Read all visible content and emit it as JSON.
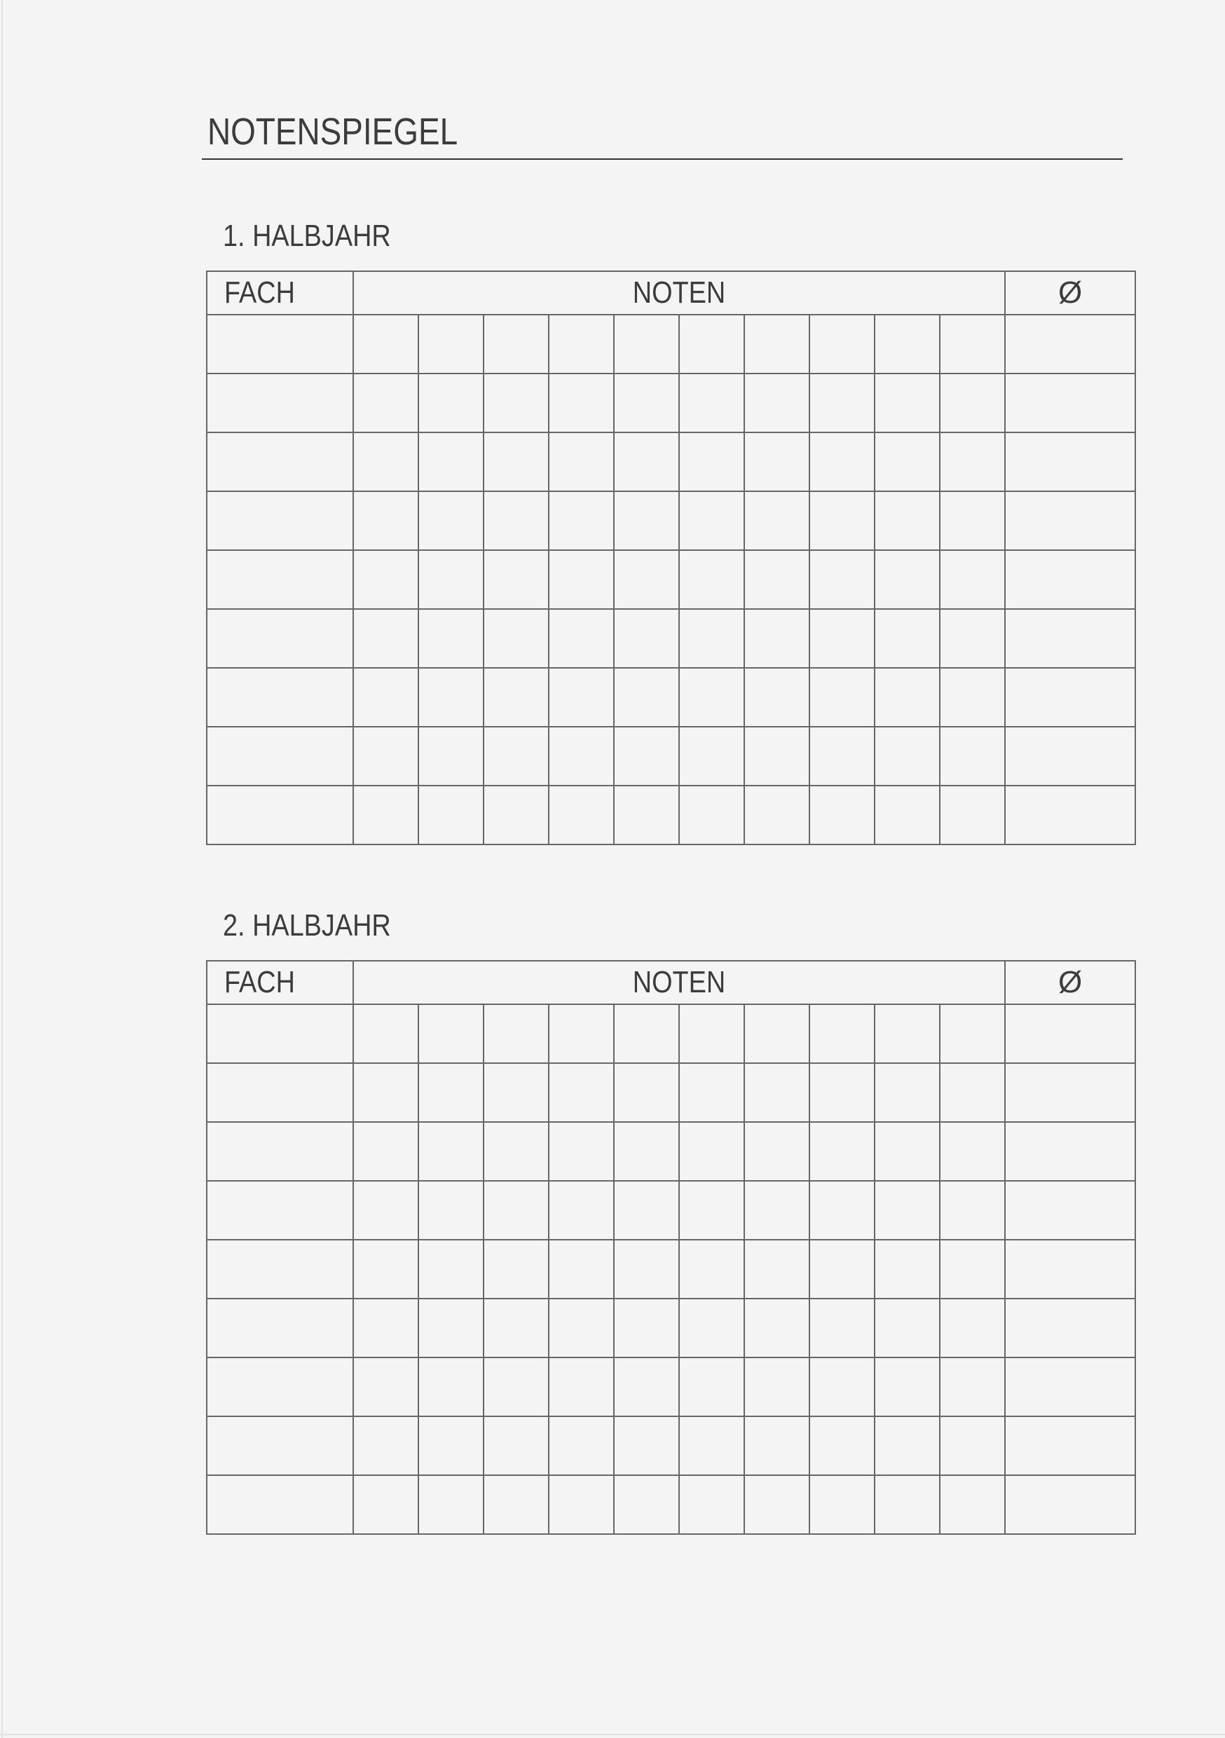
{
  "document": {
    "title": "NOTENSPIEGEL",
    "colors": {
      "background": "#f4f4f4",
      "text": "#3c3c3c",
      "grid": "#666666"
    },
    "sections": [
      {
        "heading": "1. HALBJAHR",
        "columns": {
          "subject": "FACH",
          "grades": "NOTEN",
          "average": "Ø"
        }
      },
      {
        "heading": "2. HALBJAHR",
        "columns": {
          "subject": "FACH",
          "grades": "NOTEN",
          "average": "Ø"
        }
      }
    ]
  }
}
